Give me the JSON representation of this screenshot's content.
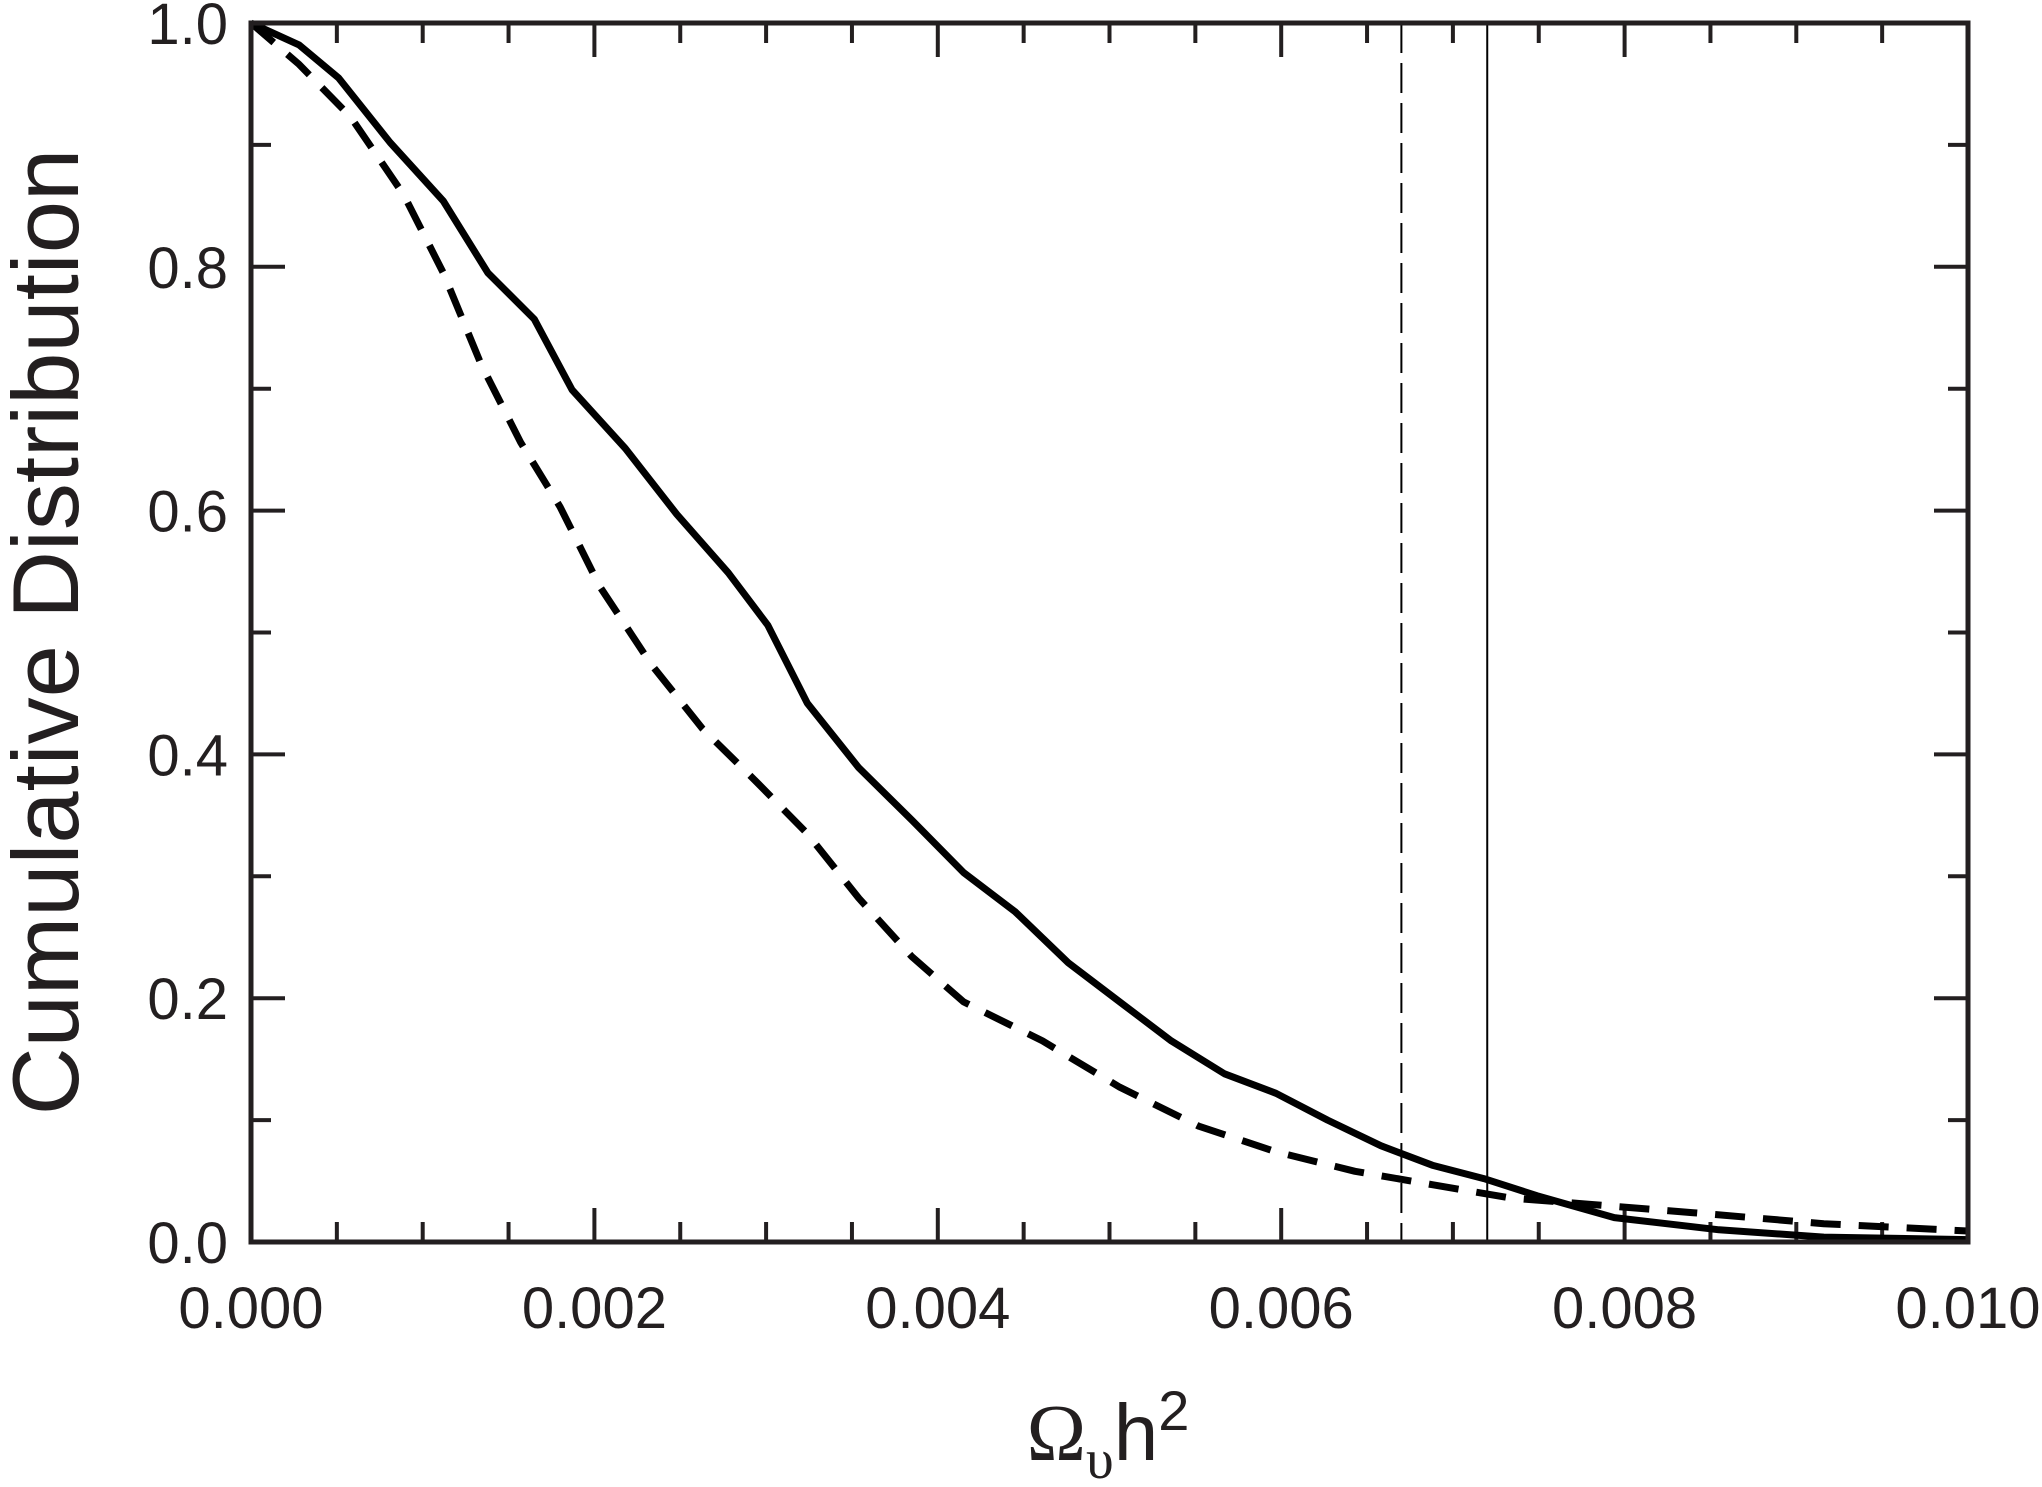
{
  "chart_data": {
    "type": "line",
    "title": "",
    "xlabel": {
      "symbol": "Ω",
      "subscript": "υ",
      "base": "h",
      "superscript": "2"
    },
    "ylabel": "Cumulative Distribution",
    "xlim": [
      0,
      0.01
    ],
    "ylim": [
      0,
      1.0
    ],
    "grid": false,
    "x_ticks": [
      "0.000",
      "0.002",
      "0.004",
      "0.006",
      "0.008",
      "0.010"
    ],
    "y_ticks": [
      "0.0",
      "0.2",
      "0.4",
      "0.6",
      "0.8",
      "1.0"
    ],
    "x_major_step": 0.002,
    "x_minor_step": 0.0005,
    "y_major_step": 0.2,
    "y_minor_step": 0.1,
    "series": [
      {
        "style": "solid",
        "x": [
          0,
          0.00028,
          0.00051,
          0.00081,
          0.00112,
          0.00138,
          0.00165,
          0.00187,
          0.00218,
          0.00248,
          0.00278,
          0.00301,
          0.00324,
          0.00354,
          0.00385,
          0.00415,
          0.00445,
          0.00476,
          0.00506,
          0.00536,
          0.00567,
          0.00597,
          0.00627,
          0.00658,
          0.00688,
          0.00718,
          0.00749,
          0.00794,
          0.00855,
          0.00916,
          0.01
        ],
        "y": [
          1.0,
          0.982,
          0.955,
          0.902,
          0.854,
          0.795,
          0.757,
          0.699,
          0.651,
          0.597,
          0.549,
          0.506,
          0.442,
          0.389,
          0.346,
          0.303,
          0.271,
          0.229,
          0.197,
          0.165,
          0.138,
          0.122,
          0.1,
          0.079,
          0.063,
          0.052,
          0.038,
          0.02,
          0.01,
          0.004,
          0.002
        ]
      },
      {
        "style": "dashed",
        "x": [
          0,
          0.00028,
          0.00058,
          0.00089,
          0.00112,
          0.00134,
          0.00157,
          0.0018,
          0.00203,
          0.00233,
          0.00263,
          0.00294,
          0.00324,
          0.00354,
          0.00385,
          0.00415,
          0.00461,
          0.00506,
          0.00552,
          0.00597,
          0.00643,
          0.00688,
          0.00734,
          0.00779,
          0.0084,
          0.00916,
          0.01
        ],
        "y": [
          1.0,
          0.966,
          0.923,
          0.859,
          0.795,
          0.72,
          0.656,
          0.603,
          0.538,
          0.474,
          0.421,
          0.378,
          0.335,
          0.282,
          0.234,
          0.197,
          0.165,
          0.127,
          0.095,
          0.074,
          0.058,
          0.047,
          0.036,
          0.031,
          0.024,
          0.015,
          0.009
        ]
      }
    ],
    "vertical_lines": [
      {
        "x": 0.0067,
        "style": "dashed"
      },
      {
        "x": 0.0072,
        "style": "solid"
      }
    ],
    "colors": {
      "line": "#000000",
      "axes": "#231f20"
    }
  }
}
